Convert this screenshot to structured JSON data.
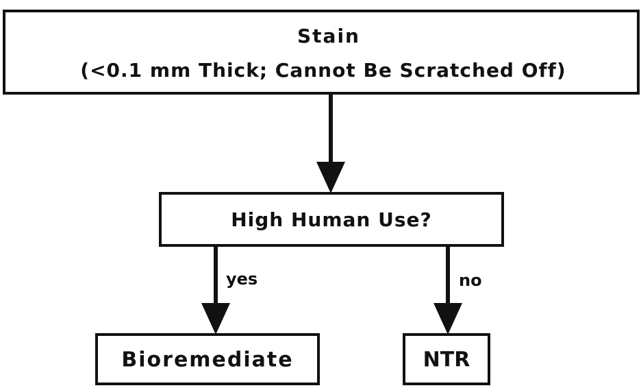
{
  "nodes": [
    {
      "label": "Stain"
    },
    {
      "label": "(<0.1 mm Thick; Cannot Be Scratched Off)"
    },
    {
      "label": "High Human Use?"
    },
    {
      "label": "Bioremediate"
    },
    {
      "label": "NTR"
    }
  ],
  "edges": [
    {
      "label": "yes"
    },
    {
      "label": "no"
    }
  ]
}
